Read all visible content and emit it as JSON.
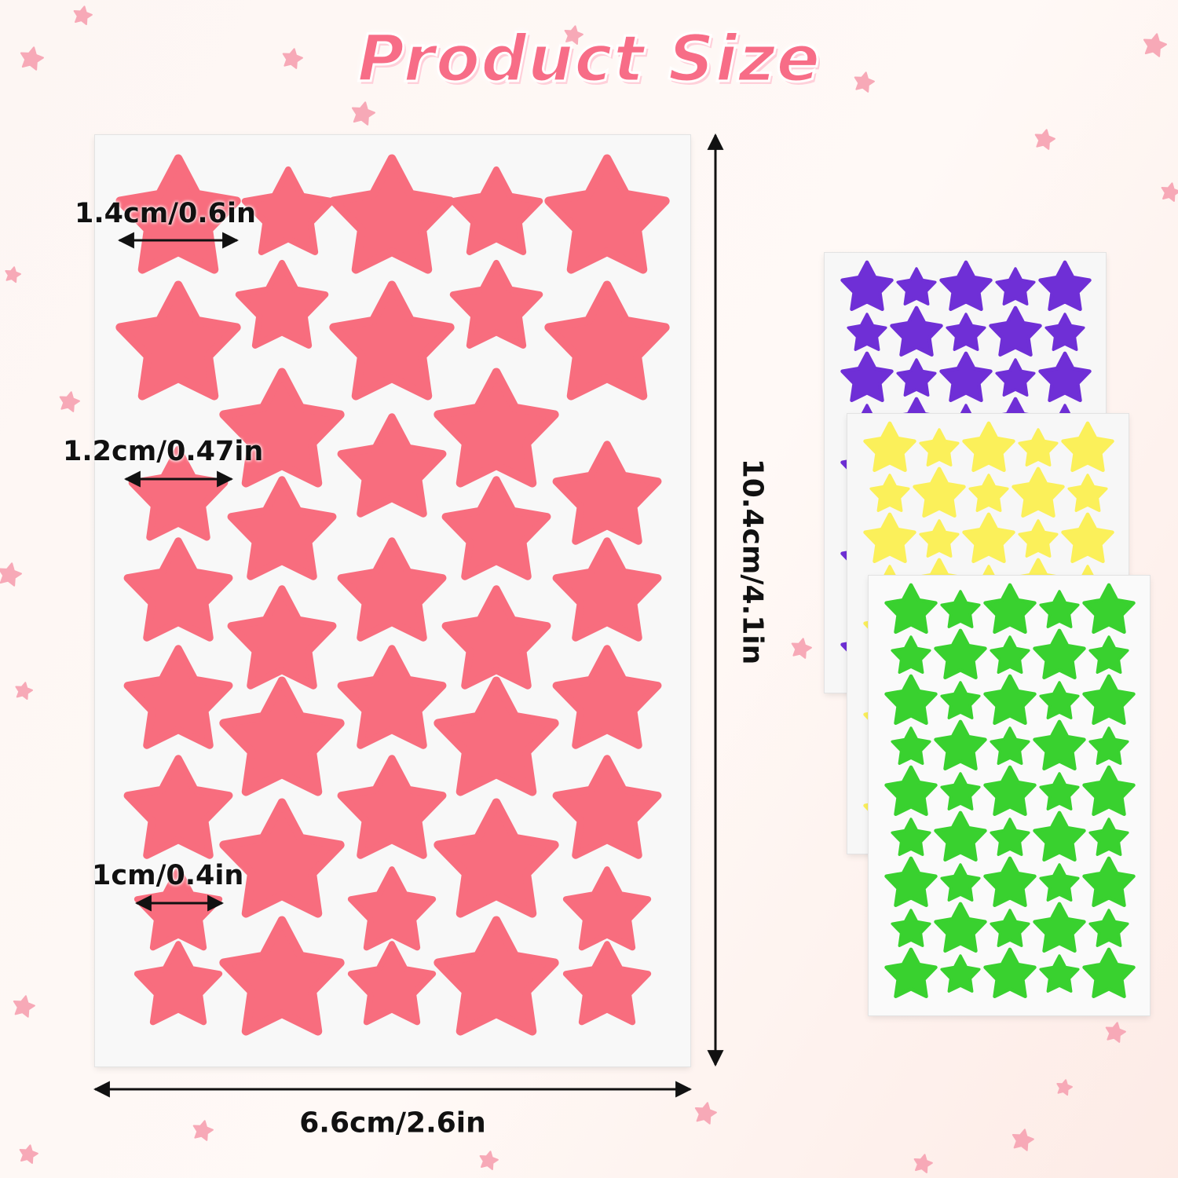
{
  "title": "Product Size",
  "colors": {
    "title_pink": "#f76d87",
    "pink_star": "#f86d7e",
    "purple_star": "#6f2fd6",
    "yellow_star": "#fbf05a",
    "green_star": "#39d12f",
    "background_star": "#f7a9b7"
  },
  "dimensions": {
    "star_large": "1.4cm/0.6in",
    "star_medium": "1.2cm/0.47in",
    "star_small": "1cm/0.4in",
    "sheet_height": "10.4cm/4.1in",
    "sheet_width": "6.6cm/2.6in"
  },
  "sheets": [
    {
      "name": "pink",
      "color": "#f86d7e"
    },
    {
      "name": "purple",
      "color": "#6f2fd6"
    },
    {
      "name": "yellow",
      "color": "#fbf05a"
    },
    {
      "name": "green",
      "color": "#39d12f"
    }
  ],
  "icons": {
    "decoration": "star-icon",
    "dimension_marker": "double-arrow-icon"
  }
}
